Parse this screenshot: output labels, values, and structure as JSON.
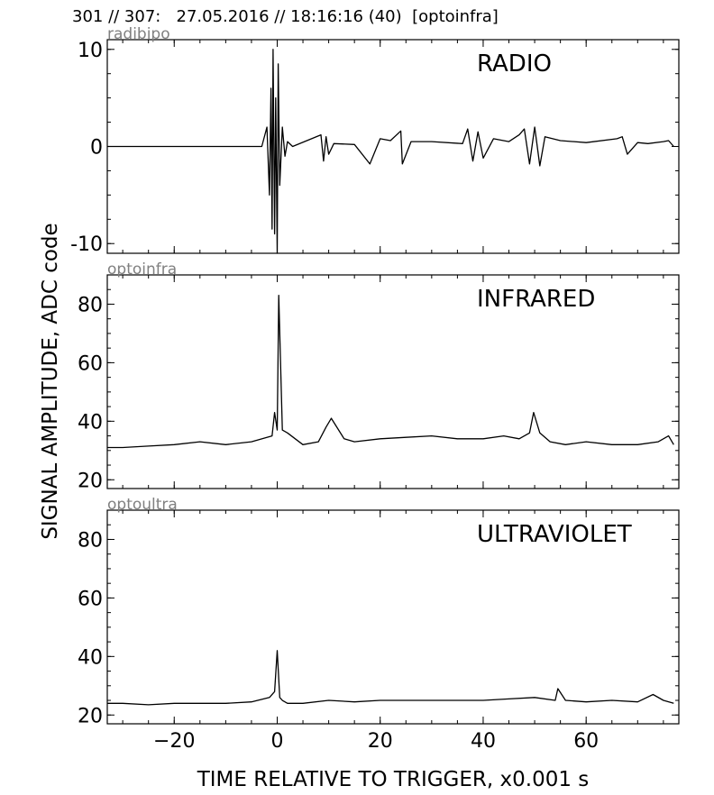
{
  "header": {
    "text": "301 // 307:   27.05.2016 // 18:16:16 (40)  [optoinfra]"
  },
  "chart_data": {
    "type": "line",
    "xlabel": "TIME RELATIVE TO TRIGGER,   x0.001 s",
    "ylabel": "SIGNAL AMPLITUDE,  ADC code",
    "xlim": [
      -33,
      78
    ],
    "xticks": [
      -20,
      0,
      20,
      40,
      60
    ],
    "xtick_labels": [
      "−20",
      "0",
      "20",
      "40",
      "60"
    ],
    "grid": false,
    "panels": [
      {
        "channel": "radibipo",
        "title": "RADIO",
        "ylim": [
          -11,
          11
        ],
        "yticks": [
          -10,
          0,
          10
        ],
        "ytick_labels": [
          "-10",
          "0",
          "10"
        ],
        "series": {
          "x": [
            -33,
            -3,
            -2,
            -1.5,
            -1.2,
            -1,
            -0.8,
            -0.5,
            -0.3,
            0,
            0.2,
            0.5,
            1,
            1.5,
            2,
            3,
            8.5,
            9,
            9.5,
            10,
            11,
            15,
            18,
            20,
            22,
            24,
            24.3,
            26,
            30,
            36,
            37,
            38,
            39,
            40,
            42,
            45,
            47,
            48,
            49,
            50,
            51,
            52,
            55,
            60,
            66,
            67,
            68,
            70,
            72,
            75,
            76,
            77
          ],
          "y": [
            0,
            0,
            2,
            -5,
            6,
            -8.5,
            10,
            -9,
            5,
            -11,
            8.5,
            -4,
            2,
            -1,
            0.5,
            0,
            1.2,
            -1.5,
            1,
            -0.8,
            0.3,
            0.2,
            -1.8,
            0.8,
            0.6,
            1.6,
            -1.8,
            0.5,
            0.5,
            0.3,
            1.8,
            -1.5,
            1.5,
            -1.2,
            0.8,
            0.5,
            1.2,
            1.8,
            -1.8,
            2,
            -2,
            1,
            0.6,
            0.4,
            0.8,
            1,
            -0.8,
            0.4,
            0.3,
            0.5,
            0.6,
            0
          ]
        }
      },
      {
        "channel": "optoinfra",
        "title": "INFRARED",
        "ylim": [
          17,
          90
        ],
        "yticks": [
          20,
          40,
          60,
          80
        ],
        "ytick_labels": [
          "20",
          "40",
          "60",
          "80"
        ],
        "series": {
          "x": [
            -33,
            -30,
            -25,
            -20,
            -15,
            -10,
            -5,
            -1,
            -0.5,
            0,
            0.3,
            1,
            2,
            5,
            8,
            9.5,
            10.5,
            13,
            15,
            20,
            25,
            30,
            35,
            40,
            44,
            47,
            49,
            49.8,
            51,
            53,
            56,
            60,
            65,
            70,
            74,
            76,
            77
          ],
          "y": [
            31,
            31,
            31.5,
            32,
            33,
            32,
            33,
            35,
            43,
            37,
            83,
            37,
            36,
            32,
            33,
            38,
            41,
            34,
            33,
            34,
            34.5,
            35,
            34,
            34,
            35,
            34,
            36,
            43,
            36,
            33,
            32,
            33,
            32,
            32,
            33,
            35,
            32
          ]
        }
      },
      {
        "channel": "optoultra",
        "title": "ULTRAVIOLET",
        "ylim": [
          17,
          90
        ],
        "yticks": [
          20,
          40,
          60,
          80
        ],
        "ytick_labels": [
          "20",
          "40",
          "60",
          "80"
        ],
        "series": {
          "x": [
            -33,
            -30,
            -25,
            -20,
            -15,
            -10,
            -5,
            -1.5,
            -0.5,
            0,
            0.5,
            1,
            2,
            5,
            10,
            15,
            20,
            25,
            30,
            35,
            40,
            45,
            50,
            54,
            54.5,
            56,
            60,
            65,
            70,
            73,
            75,
            77
          ],
          "y": [
            24,
            24,
            23.5,
            24,
            24,
            24,
            24.5,
            26,
            28,
            42,
            26,
            25,
            24,
            24,
            25,
            24.5,
            25,
            25,
            25,
            25,
            25,
            25.5,
            26,
            25,
            29,
            25,
            24.5,
            25,
            24.5,
            27,
            25,
            24
          ]
        }
      }
    ]
  }
}
